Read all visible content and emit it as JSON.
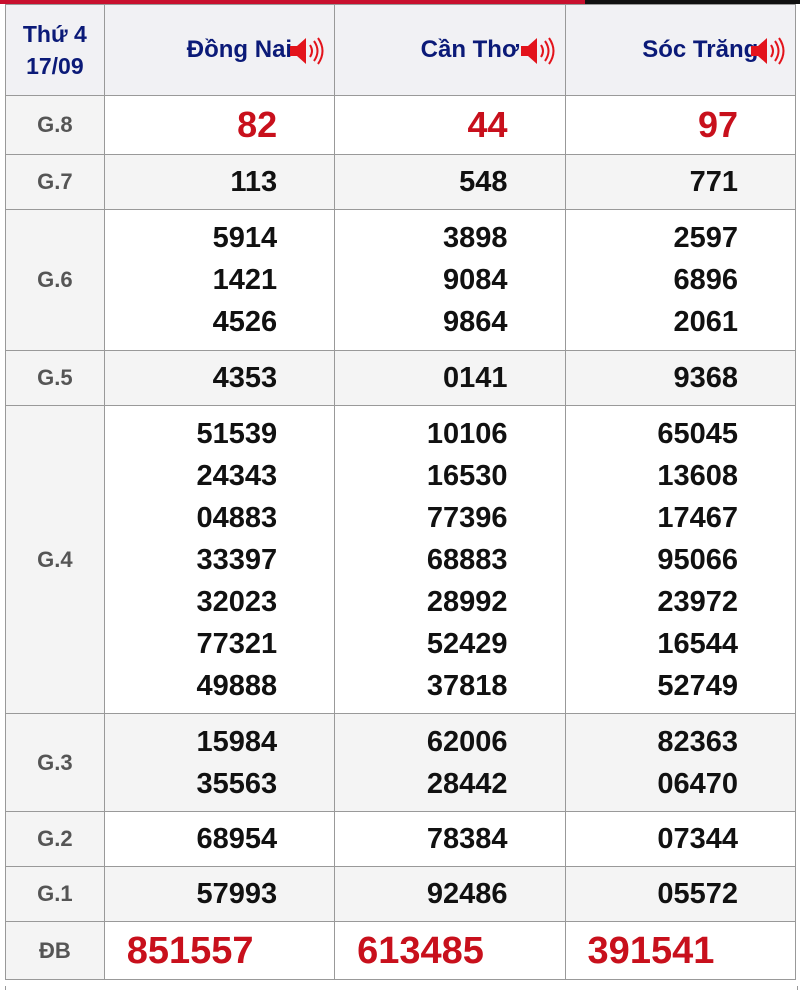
{
  "header": {
    "day": "Thứ 4",
    "date": "17/09",
    "provinces": [
      "Đồng Nai",
      "Cần Thơ",
      "Sóc Trăng"
    ],
    "speaker_icon": "speaker-volume-icon"
  },
  "colors": {
    "accent_red": "#c8101c",
    "header_text": "#0b1a78"
  },
  "prizes": [
    {
      "label": "G.8",
      "values": [
        [
          "82"
        ],
        [
          "44"
        ],
        [
          "97"
        ]
      ]
    },
    {
      "label": "G.7",
      "values": [
        [
          "113"
        ],
        [
          "548"
        ],
        [
          "771"
        ]
      ]
    },
    {
      "label": "G.6",
      "values": [
        [
          "5914",
          "1421",
          "4526"
        ],
        [
          "3898",
          "9084",
          "9864"
        ],
        [
          "2597",
          "6896",
          "2061"
        ]
      ]
    },
    {
      "label": "G.5",
      "values": [
        [
          "4353"
        ],
        [
          "0141"
        ],
        [
          "9368"
        ]
      ]
    },
    {
      "label": "G.4",
      "values": [
        [
          "51539",
          "24343",
          "04883",
          "33397",
          "32023",
          "77321",
          "49888"
        ],
        [
          "10106",
          "16530",
          "77396",
          "68883",
          "28992",
          "52429",
          "37818"
        ],
        [
          "65045",
          "13608",
          "17467",
          "95066",
          "23972",
          "16544",
          "52749"
        ]
      ]
    },
    {
      "label": "G.3",
      "values": [
        [
          "15984",
          "35563"
        ],
        [
          "62006",
          "28442"
        ],
        [
          "82363",
          "06470"
        ]
      ]
    },
    {
      "label": "G.2",
      "values": [
        [
          "68954"
        ],
        [
          "78384"
        ],
        [
          "07344"
        ]
      ]
    },
    {
      "label": "G.1",
      "values": [
        [
          "57993"
        ],
        [
          "92486"
        ],
        [
          "05572"
        ]
      ]
    },
    {
      "label": "ĐB",
      "values": [
        [
          "851557"
        ],
        [
          "613485"
        ],
        [
          "391541"
        ]
      ]
    }
  ]
}
